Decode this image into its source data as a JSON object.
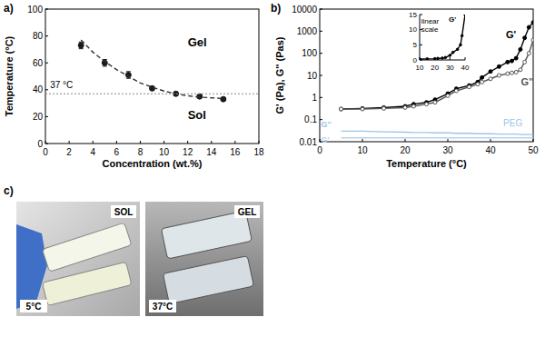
{
  "chart_data": [
    {
      "type": "scatter",
      "title": "a)",
      "xlabel": "Concentration (wt.%)",
      "ylabel": "Temperature (°C)",
      "xlim": [
        0,
        18
      ],
      "xticks": [
        0,
        2,
        4,
        6,
        8,
        10,
        12,
        14,
        16,
        18
      ],
      "ylim": [
        0,
        100
      ],
      "yticks": [
        0,
        20,
        40,
        60,
        80,
        100
      ],
      "grid": false,
      "series": [
        {
          "type": "scatter",
          "marker": "circle",
          "color": "#1a1a1a",
          "x": [
            3,
            5,
            7,
            9,
            11,
            13,
            15
          ],
          "values": [
            73,
            60,
            51,
            41,
            37,
            35,
            33
          ],
          "errors": [
            2.5,
            2.5,
            2.5,
            1.5,
            1,
            1,
            1
          ]
        },
        {
          "type": "line",
          "line_style": "dashed",
          "color": "#333333",
          "x": [
            3,
            4,
            5,
            6,
            7,
            8,
            9,
            10,
            11,
            12,
            13,
            14,
            15
          ],
          "values": [
            77,
            68,
            61,
            55,
            50,
            45,
            42,
            39,
            37,
            35.5,
            34.5,
            34,
            33.5
          ]
        },
        {
          "type": "line",
          "line_style": "dotted",
          "color": "#888888",
          "x": [
            0,
            18
          ],
          "values": [
            37,
            37
          ]
        }
      ],
      "annotations": [
        {
          "text": "Gel",
          "x": 12,
          "y": 72
        },
        {
          "text": "Sol",
          "x": 12,
          "y": 18
        },
        {
          "text": "37 °C",
          "x": 0.4,
          "y": 41
        }
      ]
    },
    {
      "type": "line",
      "title": "b)",
      "xlabel": "Temperature (°C)",
      "ylabel": "G' (Pa), G'' (Pas)",
      "log": "y",
      "xlim": [
        0,
        50
      ],
      "xticks": [
        0,
        10,
        20,
        30,
        40,
        50
      ],
      "ylim": [
        0.01,
        10000
      ],
      "yticks": [
        0.01,
        0.1,
        1,
        10,
        100,
        1000,
        10000
      ],
      "grid": false,
      "x": [
        5,
        10,
        15,
        20,
        22,
        25,
        27,
        30,
        32,
        35,
        37,
        38,
        40,
        42,
        44,
        45,
        46,
        47,
        48,
        49,
        50
      ],
      "series": [
        {
          "name": "G'",
          "color": "#000000",
          "marker": "circle",
          "values": [
            0.3,
            0.32,
            0.35,
            0.4,
            0.5,
            0.6,
            0.8,
            1.5,
            2.5,
            3.5,
            5,
            8,
            15,
            25,
            40,
            45,
            60,
            150,
            500,
            1500,
            2500
          ]
        },
        {
          "name": "G''",
          "color": "#555555",
          "marker": "open-circle",
          "values": [
            0.3,
            0.3,
            0.32,
            0.35,
            0.4,
            0.5,
            0.6,
            1.2,
            2,
            3,
            4,
            5,
            7,
            10,
            12,
            13,
            14,
            18,
            40,
            100,
            400
          ]
        },
        {
          "name": "G''",
          "color": "#9dc3e6",
          "marker": "none",
          "values": [
            0.03,
            0.03,
            0.028,
            0.027,
            0.026,
            0.026,
            0.025,
            0.025,
            0.024,
            0.024,
            0.023,
            0.023,
            0.023,
            0.022,
            0.022,
            0.022,
            0.022,
            0.021,
            0.021,
            0.021,
            0.021
          ]
        },
        {
          "name": "G'",
          "color": "#b4d2ee",
          "marker": "none",
          "values": [
            0.015,
            0.015,
            0.015,
            0.015,
            0.015,
            0.015,
            0.015,
            0.015,
            0.015,
            0.015,
            0.015,
            0.015,
            0.015,
            0.015,
            0.015,
            0.015,
            0.015,
            0.015,
            0.015,
            0.015,
            0.015
          ]
        }
      ],
      "annotations": [
        {
          "text": "PEG",
          "x": 43,
          "y": 0.05,
          "color": "#9dc3e6"
        }
      ]
    },
    {
      "type": "line",
      "xlim": [
        10,
        40
      ],
      "xticks": [
        10,
        20,
        30,
        40
      ],
      "ylim": [
        0,
        15
      ],
      "yticks": [
        0,
        5,
        10,
        15
      ],
      "grid": false,
      "x": [
        10,
        15,
        20,
        22,
        25,
        27,
        30,
        32,
        35,
        37,
        38,
        40
      ],
      "series": [
        {
          "name": "G'",
          "color": "#000000",
          "marker": "circle",
          "values": [
            0.3,
            0.35,
            0.4,
            0.5,
            0.6,
            0.8,
            1.5,
            2.5,
            3.5,
            5,
            8,
            15
          ]
        }
      ],
      "annotations": [
        {
          "text": "linear scale",
          "x": 11,
          "y": 12
        }
      ]
    }
  ],
  "panel_c": {
    "title": "c)",
    "photos": [
      {
        "label": "SOL",
        "caption": "5°C"
      },
      {
        "label": "GEL",
        "caption": "37°C"
      }
    ]
  }
}
